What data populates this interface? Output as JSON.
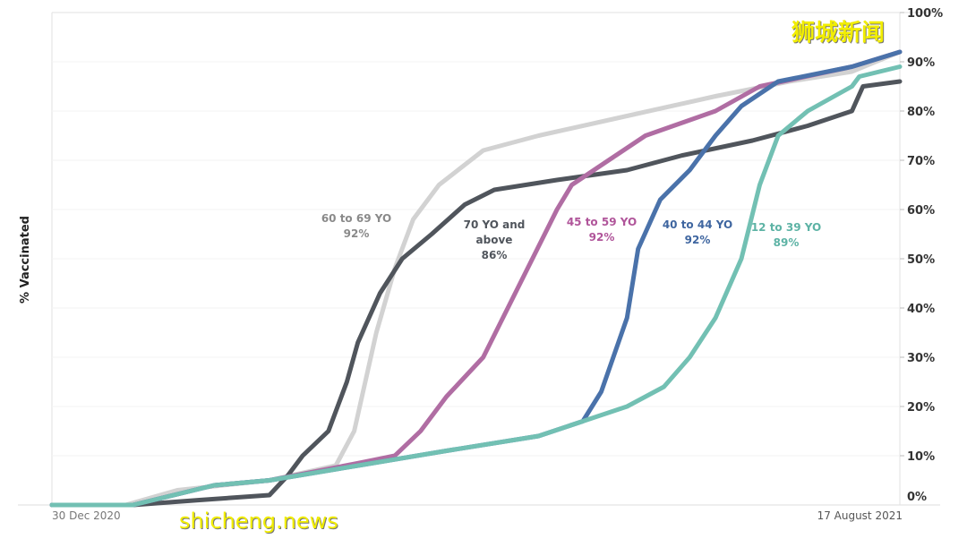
{
  "chart_data": {
    "type": "line",
    "title": "",
    "ylabel": "% Vaccinated",
    "xlabel": "",
    "x_unit": "days since 30 Dec 2020",
    "xlim": [
      0,
      230
    ],
    "ylim": [
      0,
      100
    ],
    "x_tick_labels": [
      "30 Dec 2020",
      "17 August 2021"
    ],
    "y_ticks": [
      0,
      10,
      20,
      30,
      40,
      50,
      60,
      70,
      80,
      90,
      100
    ],
    "y_tick_labels": [
      "0%",
      "10%",
      "20%",
      "30%",
      "40%",
      "50%",
      "60%",
      "70%",
      "80%",
      "90%",
      "100%"
    ],
    "grid": "horizontal",
    "series": [
      {
        "name": "60 to 69 YO",
        "final": "92%",
        "color": "#d2d2d2",
        "label_color": "#8a8a8a",
        "x": [
          0,
          20,
          34,
          59,
          77,
          82,
          88,
          93,
          98,
          105,
          117,
          132,
          156,
          180,
          200,
          217,
          230
        ],
        "y": [
          0,
          0,
          3,
          5,
          8,
          15,
          35,
          48,
          58,
          65,
          72,
          75,
          79,
          83,
          86,
          88,
          92
        ]
      },
      {
        "name": "70 YO and above",
        "final": "86%",
        "color": "#50555c",
        "label_color": "#50555c",
        "x": [
          0,
          22,
          40,
          59,
          64,
          68,
          75,
          80,
          83,
          89,
          95,
          103,
          112,
          120,
          137,
          156,
          171,
          190,
          205,
          217,
          220,
          230
        ],
        "y": [
          0,
          0,
          1,
          2,
          6,
          10,
          15,
          25,
          33,
          43,
          50,
          55,
          61,
          64,
          66,
          68,
          71,
          74,
          77,
          80,
          85,
          86
        ]
      },
      {
        "name": "45 to 59 YO",
        "final": "92%",
        "color": "#b06da3",
        "label_color": "#b0559a",
        "x": [
          0,
          22,
          44,
          59,
          83,
          93,
          100,
          107,
          117,
          127,
          137,
          141,
          151,
          161,
          180,
          192,
          217,
          230
        ],
        "y": [
          0,
          0,
          4,
          5,
          8.5,
          10,
          15,
          22,
          30,
          45,
          60,
          65,
          70,
          75,
          80,
          85,
          89,
          92
        ]
      },
      {
        "name": "40 to 44 YO",
        "final": "92%",
        "color": "#4a72aa",
        "label_color": "#3f66a0",
        "x": [
          0,
          22,
          44,
          59,
          83,
          107,
          132,
          144,
          149,
          156,
          159,
          165,
          173,
          180,
          187,
          197,
          217,
          230
        ],
        "y": [
          0,
          0,
          4,
          5,
          8,
          11,
          14,
          17,
          23,
          38,
          52,
          62,
          68,
          75,
          81,
          86,
          89,
          92
        ]
      },
      {
        "name": "12 to 39 YO",
        "final": "89%",
        "color": "#72c0b3",
        "label_color": "#5db3a5",
        "x": [
          0,
          22,
          44,
          59,
          83,
          107,
          132,
          144,
          156,
          166,
          173,
          180,
          187,
          192,
          197,
          205,
          217,
          219,
          230
        ],
        "y": [
          0,
          0,
          4,
          5,
          8,
          11,
          14,
          17,
          20,
          24,
          30,
          38,
          50,
          65,
          75,
          80,
          85,
          87,
          89
        ]
      }
    ]
  },
  "watermarks": {
    "top": "狮城新闻",
    "bottom": "shicheng.news"
  }
}
